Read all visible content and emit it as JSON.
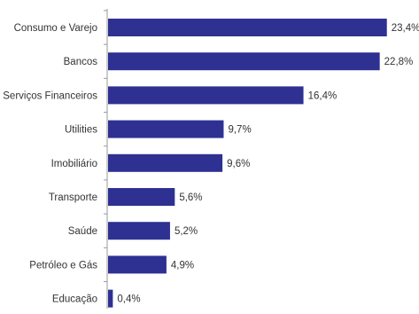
{
  "chart_data": {
    "type": "bar",
    "orientation": "horizontal",
    "categories": [
      "Consumo e Varejo",
      "Bancos",
      "Serviços Financeiros",
      "Utilities",
      "Imobiliário",
      "Transporte",
      "Saúde",
      "Petróleo e Gás",
      "Educação"
    ],
    "values": [
      23.4,
      22.8,
      16.4,
      9.7,
      9.6,
      5.6,
      5.2,
      4.9,
      0.4
    ],
    "value_labels": [
      "23,4%",
      "22,8%",
      "16,4%",
      "9,7%",
      "9,6%",
      "5,6%",
      "5,2%",
      "4,9%",
      "0,4%"
    ],
    "title": "",
    "xlabel": "",
    "ylabel": "",
    "xlim": [
      0,
      25
    ],
    "grid": false,
    "legend": "none",
    "colors": {
      "bar": "#2e3192",
      "axis": "#9a9a9a",
      "text": "#333333"
    }
  }
}
